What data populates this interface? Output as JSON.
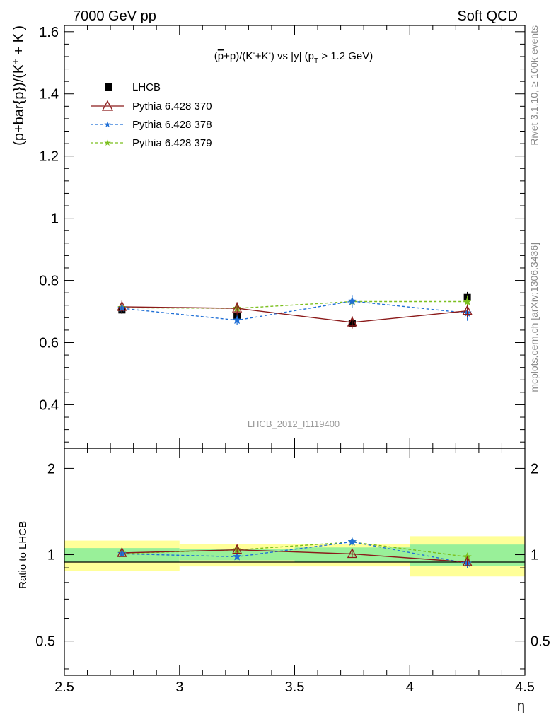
{
  "header": {
    "left": "7000 GeV pp",
    "right": "Soft QCD"
  },
  "chart_data": {
    "type": "scatter",
    "title": "(p̄+p)/(K⁻+K⁻) vs |y| (p_T > 1.2 GeV)",
    "title_parts": {
      "a": "(",
      "pbar": "p",
      "b": "+p)/(K",
      "sup1": "-",
      "c": "+K",
      "sup2": "-",
      "d": ") vs |y| (p",
      "sub": "T",
      "e": " > 1.2 GeV)"
    },
    "ylabel": "(p+bar{p})/(K⁺ + K⁻)",
    "ylabel_parts": {
      "a": "(p+bar{p})/(K",
      "sup1": "+",
      "b": " + K",
      "sup2": "-",
      "c": ")"
    },
    "ratio_ylabel": "Ratio to LHCB",
    "xlabel": "η",
    "analysis_id": "LHCB_2012_I1119400",
    "side_label_top": "Rivet 3.1.10, ≥ 100k events",
    "side_label_bottom": "mcplots.cern.ch [arXiv:1306.3436]",
    "xlim": [
      2.5,
      4.5
    ],
    "ylim": [
      0.26,
      1.62
    ],
    "ratio_ylim": [
      0.38,
      2.35
    ],
    "x_ticks": [
      "2.5",
      "3",
      "3.5",
      "4",
      "4.5"
    ],
    "y_ticks": [
      "0.4",
      "0.6",
      "0.8",
      "1",
      "1.2",
      "1.4",
      "1.6"
    ],
    "ratio_ticks": [
      "0.5",
      "1",
      "2"
    ],
    "data": {
      "name": "LHCB",
      "color": "#000000",
      "x": [
        2.75,
        3.25,
        3.75,
        4.25
      ],
      "y": [
        0.705,
        0.683,
        0.661,
        0.745
      ],
      "xerr": [
        [
          2.5,
          3.0
        ],
        [
          3.0,
          3.5
        ],
        [
          3.5,
          4.0
        ],
        [
          4.0,
          4.5
        ]
      ],
      "band_inner": [
        0.055,
        0.045,
        0.06,
        0.085
      ],
      "band_outer": [
        0.12,
        0.09,
        0.09,
        0.16
      ]
    },
    "series": [
      {
        "name": "Pythia 6.428 370",
        "color": "#8b1a1a",
        "style": "solid",
        "marker": "triangle",
        "x": [
          2.75,
          3.25,
          3.75,
          4.25
        ],
        "y": [
          0.715,
          0.71,
          0.665,
          0.702
        ],
        "err": [
          0.02,
          0.02,
          0.02,
          0.02
        ]
      },
      {
        "name": "Pythia 6.428 378",
        "color": "#1f6fd6",
        "style": "dashed",
        "marker": "star",
        "x": [
          2.75,
          3.25,
          3.75,
          4.25
        ],
        "y": [
          0.71,
          0.672,
          0.733,
          0.695
        ],
        "err": [
          0.015,
          0.015,
          0.02,
          0.025
        ]
      },
      {
        "name": "Pythia 6.428 379",
        "color": "#7bbf1e",
        "style": "dashed",
        "marker": "star",
        "x": [
          2.75,
          3.25,
          3.75,
          4.25
        ],
        "y": [
          0.712,
          0.71,
          0.732,
          0.732
        ],
        "err": [
          0.015,
          0.015,
          0.02,
          0.02
        ]
      }
    ],
    "legend_placement": "top-left"
  }
}
